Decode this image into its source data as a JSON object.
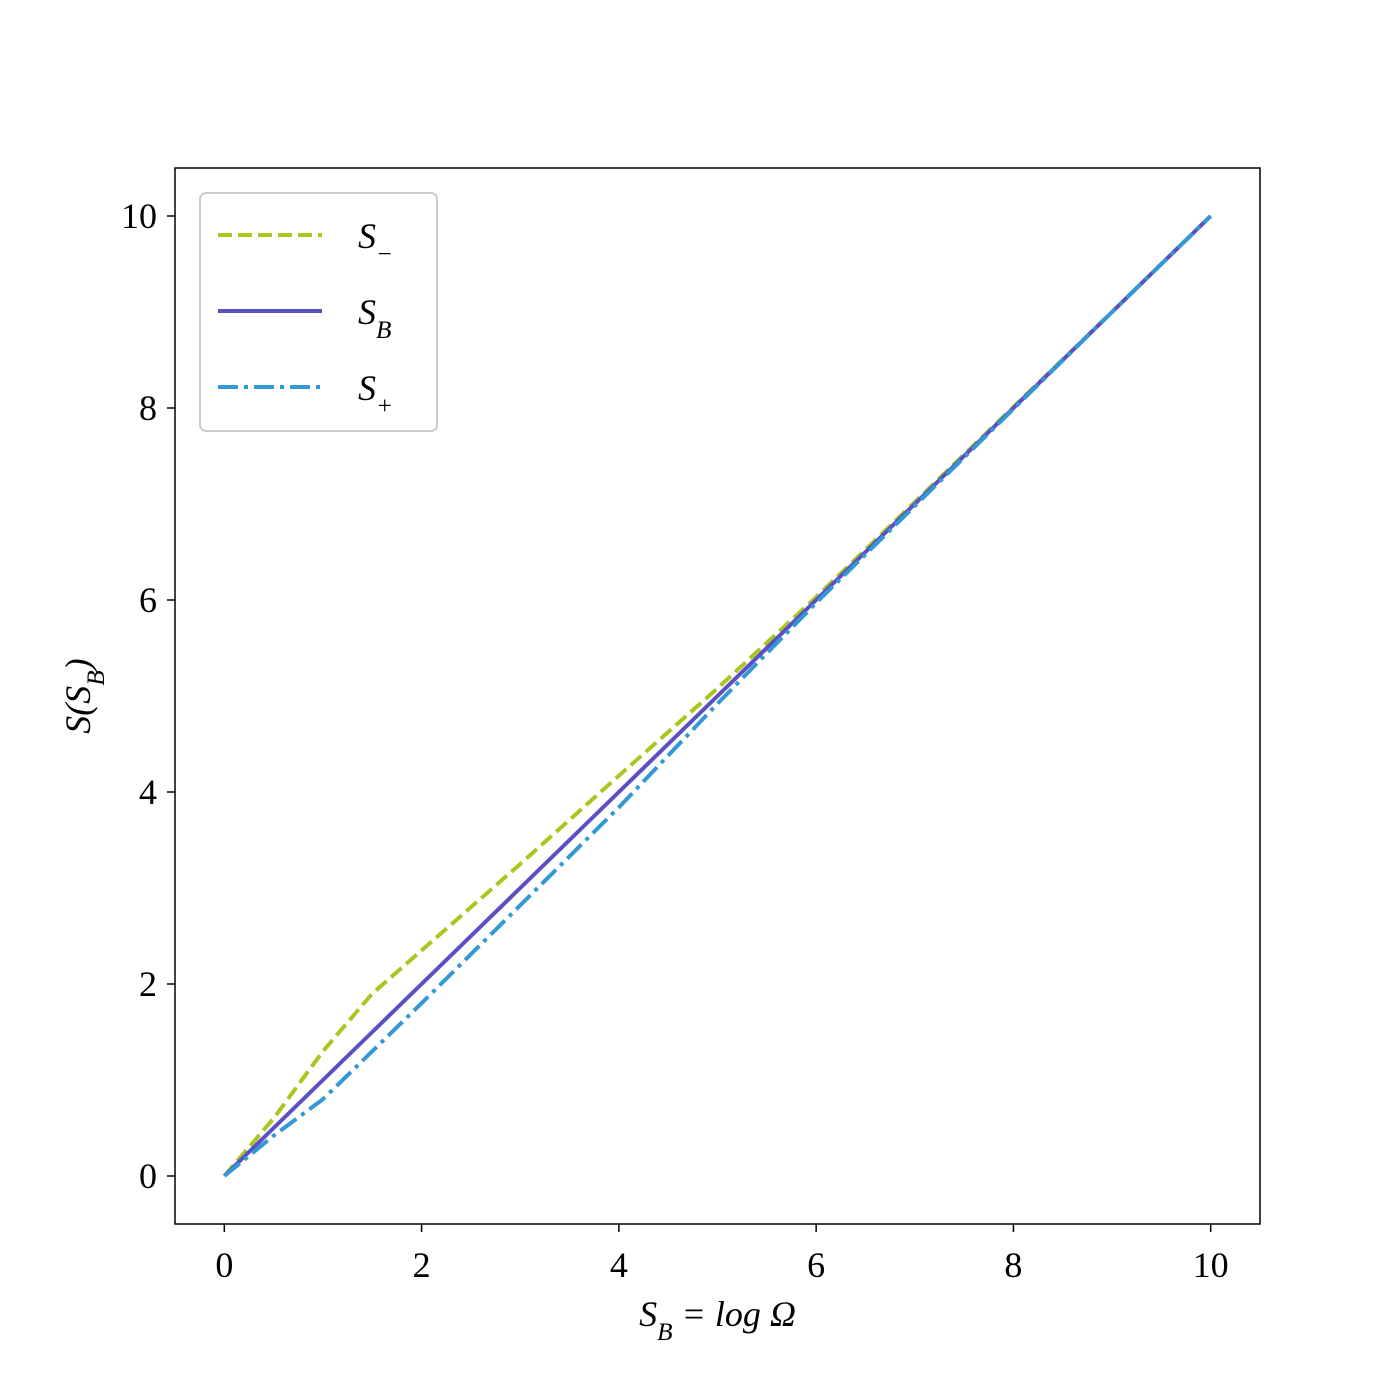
{
  "chart_data": {
    "type": "line",
    "x_label": "S_B = log Ω",
    "y_label": "S(S_B)",
    "x": [
      0,
      0.5,
      1,
      1.5,
      2,
      3,
      4,
      5,
      6,
      7,
      8,
      9,
      10
    ],
    "series": [
      {
        "name": "S_−",
        "color": "#a8c820",
        "linestyle": "dashed",
        "values": [
          0,
          0.6,
          1.3,
          1.9,
          2.35,
          3.25,
          4.17,
          5.08,
          6.03,
          7.02,
          8.01,
          9.0,
          10
        ]
      },
      {
        "name": "S_B",
        "color": "#5b4fc4",
        "linestyle": "solid",
        "values": [
          0,
          0.5,
          1,
          1.5,
          2,
          3,
          4,
          5,
          6,
          7,
          8,
          9,
          10
        ]
      },
      {
        "name": "S_+",
        "color": "#3399d6",
        "linestyle": "dashdot",
        "values": [
          0,
          0.42,
          0.8,
          1.3,
          1.8,
          2.82,
          3.84,
          4.92,
          5.97,
          6.98,
          7.99,
          9.0,
          10
        ]
      }
    ],
    "xlim": [
      -0.5,
      10.5
    ],
    "ylim": [
      -0.5,
      10.5
    ],
    "xticks": [
      0,
      2,
      4,
      6,
      8,
      10
    ],
    "yticks": [
      0,
      2,
      4,
      6,
      8,
      10
    ],
    "grid": false,
    "legend": "upper left"
  }
}
